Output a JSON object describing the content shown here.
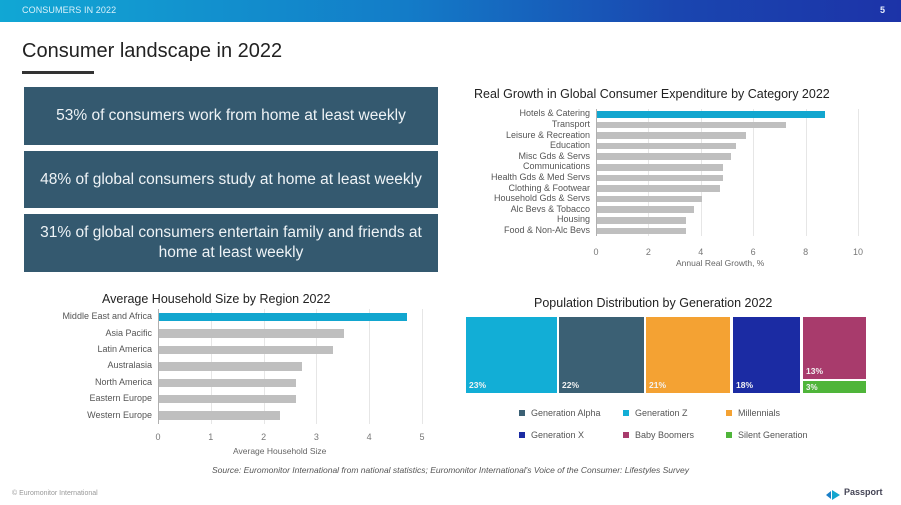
{
  "header": {
    "section": "CONSUMERS IN 2022",
    "page_number": "5",
    "title": "Consumer landscape in 2022"
  },
  "stats": [
    "53% of consumers work from home at least weekly",
    "48% of global consumers study at home at least weekly",
    "31% of global consumers entertain family and friends at home at least weekly"
  ],
  "colors": {
    "highlight": "#12a6cf",
    "bar": "#bfbfbf",
    "stat_box": "#34596f",
    "gen_alpha": "#3b6074",
    "gen_z": "#12aed6",
    "millennials": "#f4a233",
    "gen_x": "#1b2ba3",
    "baby_boomers": "#a83b6c",
    "silent": "#4fb53a"
  },
  "chart_data": [
    {
      "type": "bar",
      "orientation": "horizontal",
      "title": "Real Growth in Global Consumer Expenditure by Category 2022",
      "xlabel": "Annual Real Growth, %",
      "ylabel": "",
      "xlim": [
        0,
        10
      ],
      "xticks": [
        "0",
        "2",
        "4",
        "6",
        "8",
        "10"
      ],
      "grid": true,
      "categories": [
        "Hotels & Catering",
        "Transport",
        "Leisure & Recreation",
        "Education",
        "Misc Gds & Servs",
        "Communications",
        "Health Gds & Med Servs",
        "Clothing & Footwear",
        "Household Gds & Servs",
        "Alc Bevs & Tobacco",
        "Housing",
        "Food & Non-Alc Bevs"
      ],
      "values": [
        8.7,
        7.2,
        5.7,
        5.3,
        5.1,
        4.8,
        4.8,
        4.7,
        4.0,
        3.7,
        3.4,
        3.4
      ],
      "highlight_index": 0
    },
    {
      "type": "bar",
      "orientation": "horizontal",
      "title": "Average Household Size by Region 2022",
      "xlabel": "Average Household Size",
      "ylabel": "",
      "xlim": [
        0,
        5
      ],
      "xticks": [
        "0",
        "1",
        "2",
        "3",
        "4",
        "5"
      ],
      "grid": true,
      "categories": [
        "Middle East and Africa",
        "Asia Pacific",
        "Latin America",
        "Australasia",
        "North America",
        "Eastern Europe",
        "Western Europe"
      ],
      "values": [
        4.7,
        3.5,
        3.3,
        2.7,
        2.6,
        2.6,
        2.3
      ],
      "highlight_index": 0
    },
    {
      "type": "treemap",
      "title": "Population Distribution by Generation 2022",
      "series": [
        {
          "name": "Generation Z",
          "value": 23,
          "label": "23%",
          "color_key": "gen_z"
        },
        {
          "name": "Generation Alpha",
          "value": 22,
          "label": "22%",
          "color_key": "gen_alpha"
        },
        {
          "name": "Millennials",
          "value": 21,
          "label": "21%",
          "color_key": "millennials"
        },
        {
          "name": "Generation X",
          "value": 18,
          "label": "18%",
          "color_key": "gen_x"
        },
        {
          "name": "Baby Boomers",
          "value": 13,
          "label": "13%",
          "color_key": "baby_boomers"
        },
        {
          "name": "Silent Generation",
          "value": 3,
          "label": "3%",
          "color_key": "silent"
        }
      ],
      "legend": [
        {
          "label": "Generation Alpha",
          "color_key": "gen_alpha"
        },
        {
          "label": "Generation Z",
          "color_key": "gen_z"
        },
        {
          "label": "Millennials",
          "color_key": "millennials"
        },
        {
          "label": "Generation X",
          "color_key": "gen_x"
        },
        {
          "label": "Baby Boomers",
          "color_key": "baby_boomers"
        },
        {
          "label": "Silent Generation",
          "color_key": "silent"
        }
      ],
      "legend_position": "bottom"
    }
  ],
  "footer": {
    "source": "Source: Euromonitor International from national statistics; Euromonitor International's Voice of the Consumer: Lifestyles Survey",
    "copyright": "© Euromonitor International",
    "logo_text": "Passport"
  }
}
